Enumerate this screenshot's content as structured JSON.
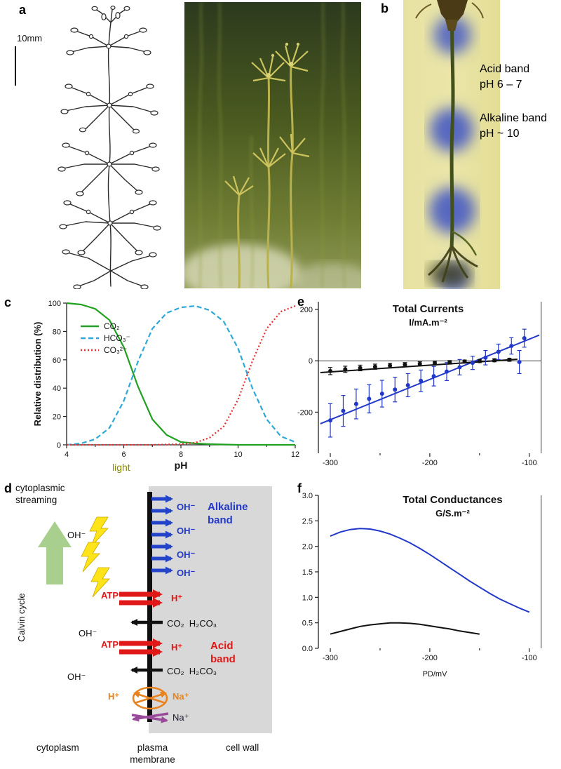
{
  "panels": {
    "a": "a",
    "b": "b",
    "c": "c",
    "d": "d",
    "e": "e",
    "f": "f"
  },
  "panel_a": {
    "scale_bar": "10mm"
  },
  "panel_b": {
    "acid_line1": "Acid band",
    "acid_line2": "pH 6 – 7",
    "alk_line1": "Alkaline band",
    "alk_line2": "pH ~ 10"
  },
  "panel_d": {
    "cyto_line1": "cytoplasmic",
    "cyto_line2": "streaming",
    "light": "light",
    "calvin": "Calvin cycle",
    "oh_black": [
      "OH⁻",
      "OH⁻",
      "OH⁻"
    ],
    "oh_blue": [
      "OH⁻",
      "OH⁻",
      "OH⁻",
      "OH⁻"
    ],
    "alkaline": [
      "Alkaline",
      "band"
    ],
    "acid": [
      "Acid",
      "band"
    ],
    "atp": [
      "ATP",
      "ATP"
    ],
    "h_red": [
      "H⁺",
      "H⁺"
    ],
    "co2": [
      "CO₂  H₂CO₃",
      "CO₂  H₂CO₃"
    ],
    "h_orange": "H⁺",
    "na_orange": "Na⁺",
    "na_dark": "Na⁺",
    "cytoplasm": "cytoplasm",
    "plasma": [
      "plasma",
      "membrane"
    ],
    "cell_wall": "cell wall"
  },
  "chart_data": [
    {
      "panel": "c",
      "type": "line",
      "xlabel": "pH",
      "ylabel": "Relative distribution (%)",
      "xlim": [
        4,
        12
      ],
      "ylim": [
        0,
        100
      ],
      "xticks": [
        {
          "v": 4,
          "label": "4"
        },
        {
          "v": 5,
          "label": ""
        },
        {
          "v": 6,
          "label": "6"
        },
        {
          "v": 7,
          "label": ""
        },
        {
          "v": 8,
          "label": "8"
        },
        {
          "v": 9,
          "label": ""
        },
        {
          "v": 10,
          "label": "10"
        },
        {
          "v": 11,
          "label": ""
        },
        {
          "v": 12,
          "label": "12"
        }
      ],
      "yticks": [
        {
          "v": 0,
          "label": "0"
        },
        {
          "v": 20,
          "label": "20"
        },
        {
          "v": 40,
          "label": "40"
        },
        {
          "v": 60,
          "label": "60"
        },
        {
          "v": 80,
          "label": "80"
        },
        {
          "v": 100,
          "label": "100"
        }
      ],
      "legend": [
        {
          "label": "CO₂",
          "color": "#22a022",
          "dash": null
        },
        {
          "label": "HCO₃⁻",
          "color": "#2ea8d8",
          "dash": [
            7,
            4
          ]
        },
        {
          "label": "CO₃²⁻",
          "color": "#e83030",
          "dash": [
            2,
            3
          ]
        }
      ],
      "series": [
        {
          "name": "CO₂",
          "color": "#22a022",
          "width": 2.2,
          "points": [
            [
              4,
              100
            ],
            [
              4.5,
              99
            ],
            [
              5,
              96
            ],
            [
              5.5,
              88
            ],
            [
              6,
              69
            ],
            [
              6.5,
              41
            ],
            [
              7,
              18
            ],
            [
              7.5,
              7
            ],
            [
              8,
              2
            ],
            [
              8.5,
              1
            ],
            [
              9,
              0.5
            ],
            [
              10,
              0
            ],
            [
              11,
              0
            ],
            [
              12,
              0
            ]
          ]
        },
        {
          "name": "HCO₃⁻",
          "color": "#2ea8d8",
          "width": 2.2,
          "dash": [
            7,
            4
          ],
          "points": [
            [
              4,
              0
            ],
            [
              4.5,
              1
            ],
            [
              5,
              4
            ],
            [
              5.5,
              12
            ],
            [
              6,
              31
            ],
            [
              6.5,
              59
            ],
            [
              7,
              82
            ],
            [
              7.5,
              93
            ],
            [
              8,
              97
            ],
            [
              8.5,
              98
            ],
            [
              9,
              95
            ],
            [
              9.5,
              87
            ],
            [
              10,
              68
            ],
            [
              10.5,
              40
            ],
            [
              11,
              18
            ],
            [
              11.5,
              6
            ],
            [
              12,
              2
            ]
          ]
        },
        {
          "name": "CO₃²⁻",
          "color": "#e83030",
          "width": 2.2,
          "dash": [
            2,
            3
          ],
          "points": [
            [
              4,
              0
            ],
            [
              7,
              0
            ],
            [
              8,
              0.5
            ],
            [
              8.5,
              1.5
            ],
            [
              9,
              5
            ],
            [
              9.5,
              13
            ],
            [
              10,
              32
            ],
            [
              10.5,
              59
            ],
            [
              11,
              82
            ],
            [
              11.5,
              94
            ],
            [
              12,
              98
            ]
          ]
        }
      ]
    },
    {
      "panel": "e",
      "type": "scatter-line",
      "title": "Total Currents",
      "subtitle": "I/mA.m⁻²",
      "xlim": [
        -312,
        -78
      ],
      "ylim": [
        -360,
        230
      ],
      "vline": -88,
      "zero_line": true,
      "xticks": [
        {
          "v": -300,
          "label": "-300"
        },
        {
          "v": -250,
          "label": ""
        },
        {
          "v": -200,
          "label": "-200"
        },
        {
          "v": -150,
          "label": ""
        },
        {
          "v": -100,
          "label": "-100"
        }
      ],
      "yticks": [
        {
          "v": 200,
          "label": "200"
        },
        {
          "v": 0,
          "label": "0"
        },
        {
          "v": -200,
          "label": "-200"
        }
      ],
      "series": [
        {
          "name": "blue-fit",
          "color": "#2238c8",
          "width": 2,
          "points": [
            [
              -310,
              -245
            ],
            [
              -90,
              100
            ]
          ]
        },
        {
          "name": "black-fit",
          "color": "#111111",
          "width": 2,
          "points": [
            [
              -310,
              -46
            ],
            [
              -112,
              6
            ]
          ]
        },
        {
          "name": "treatment",
          "color": "#2238c8",
          "scatter": true,
          "points": [
            [
              -300,
              -232,
              65
            ],
            [
              -287,
              -195,
              60
            ],
            [
              -274,
              -168,
              58
            ],
            [
              -261,
              -148,
              55
            ],
            [
              -248,
              -128,
              52
            ],
            [
              -235,
              -112,
              48
            ],
            [
              -222,
              -95,
              45
            ],
            [
              -209,
              -78,
              42
            ],
            [
              -196,
              -60,
              38
            ],
            [
              -183,
              -42,
              35
            ],
            [
              -170,
              -25,
              30
            ],
            [
              -157,
              -8,
              26
            ],
            [
              -144,
              12,
              28
            ],
            [
              -131,
              35,
              30
            ],
            [
              -118,
              58,
              32
            ],
            [
              -105,
              88,
              35
            ],
            [
              -110,
              -5,
              45
            ]
          ]
        },
        {
          "name": "control",
          "color": "#111111",
          "scatter": true,
          "points": [
            [
              -300,
              -40,
              14
            ],
            [
              -285,
              -33,
              12
            ],
            [
              -270,
              -28,
              11
            ],
            [
              -255,
              -23,
              10
            ],
            [
              -240,
              -19,
              9
            ],
            [
              -225,
              -15,
              8
            ],
            [
              -210,
              -12,
              8
            ],
            [
              -195,
              -9,
              7
            ],
            [
              -180,
              -6,
              7
            ],
            [
              -165,
              -3,
              6
            ],
            [
              -150,
              -1,
              6
            ],
            [
              -135,
              2,
              6
            ],
            [
              -120,
              4,
              6
            ]
          ]
        }
      ]
    },
    {
      "panel": "f",
      "type": "line",
      "title": "Total Conductances",
      "subtitle": "G/S.m⁻²",
      "xlabel": "PD/mV",
      "xlim": [
        -312,
        -78
      ],
      "ylim": [
        0,
        3
      ],
      "vline": -88,
      "xticks": [
        {
          "v": -300,
          "label": "-300"
        },
        {
          "v": -250,
          "label": ""
        },
        {
          "v": -200,
          "label": "-200"
        },
        {
          "v": -150,
          "label": ""
        },
        {
          "v": -100,
          "label": "-100"
        }
      ],
      "yticks": [
        {
          "v": 0,
          "label": "0.0"
        },
        {
          "v": 0.5,
          "label": "0.5"
        },
        {
          "v": 1,
          "label": "1.0"
        },
        {
          "v": 1.5,
          "label": "1.5"
        },
        {
          "v": 2,
          "label": "2.0"
        },
        {
          "v": 2.5,
          "label": "2.5"
        },
        {
          "v": 3,
          "label": "3.0"
        }
      ],
      "series": [
        {
          "name": "blue",
          "color": "#2238c8",
          "width": 2,
          "points": [
            [
              -300,
              2.2
            ],
            [
              -290,
              2.28
            ],
            [
              -280,
              2.33
            ],
            [
              -270,
              2.35
            ],
            [
              -260,
              2.34
            ],
            [
              -250,
              2.3
            ],
            [
              -240,
              2.24
            ],
            [
              -230,
              2.16
            ],
            [
              -220,
              2.07
            ],
            [
              -210,
              1.96
            ],
            [
              -200,
              1.84
            ],
            [
              -190,
              1.71
            ],
            [
              -180,
              1.58
            ],
            [
              -170,
              1.45
            ],
            [
              -160,
              1.32
            ],
            [
              -150,
              1.2
            ],
            [
              -140,
              1.08
            ],
            [
              -130,
              0.97
            ],
            [
              -120,
              0.88
            ],
            [
              -110,
              0.79
            ],
            [
              -100,
              0.71
            ]
          ]
        },
        {
          "name": "black",
          "color": "#111111",
          "width": 2,
          "points": [
            [
              -300,
              0.28
            ],
            [
              -290,
              0.33
            ],
            [
              -280,
              0.38
            ],
            [
              -270,
              0.43
            ],
            [
              -260,
              0.46
            ],
            [
              -250,
              0.48
            ],
            [
              -240,
              0.5
            ],
            [
              -230,
              0.5
            ],
            [
              -220,
              0.49
            ],
            [
              -210,
              0.47
            ],
            [
              -200,
              0.44
            ],
            [
              -190,
              0.41
            ],
            [
              -180,
              0.38
            ],
            [
              -170,
              0.34
            ],
            [
              -160,
              0.31
            ],
            [
              -150,
              0.28
            ]
          ]
        }
      ]
    }
  ]
}
